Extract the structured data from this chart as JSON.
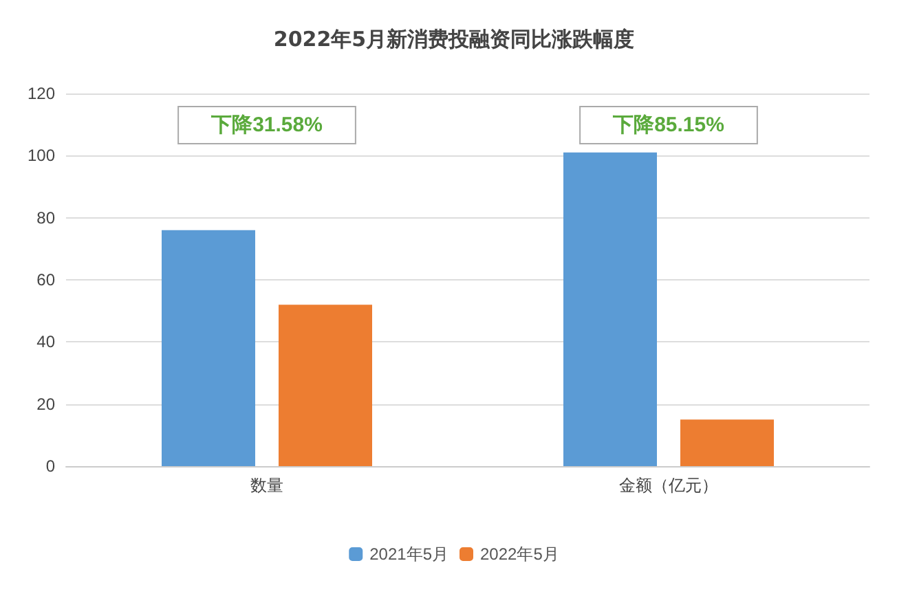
{
  "chart_data": {
    "type": "bar",
    "title": "2022年5月新消费投融资同比涨跌幅度",
    "categories": [
      "数量",
      "金额（亿元）"
    ],
    "series": [
      {
        "name": "2021年5月",
        "color": "#5b9bd5",
        "values": [
          76,
          101
        ]
      },
      {
        "name": "2022年5月",
        "color": "#ed7d31",
        "values": [
          52,
          15
        ]
      }
    ],
    "ylim": [
      0,
      120
    ],
    "yticks": [
      0,
      20,
      40,
      60,
      80,
      100,
      120
    ],
    "grid": "y",
    "legend": "bottom",
    "annotations": [
      "下降31.58%",
      "下降85.15%"
    ]
  }
}
